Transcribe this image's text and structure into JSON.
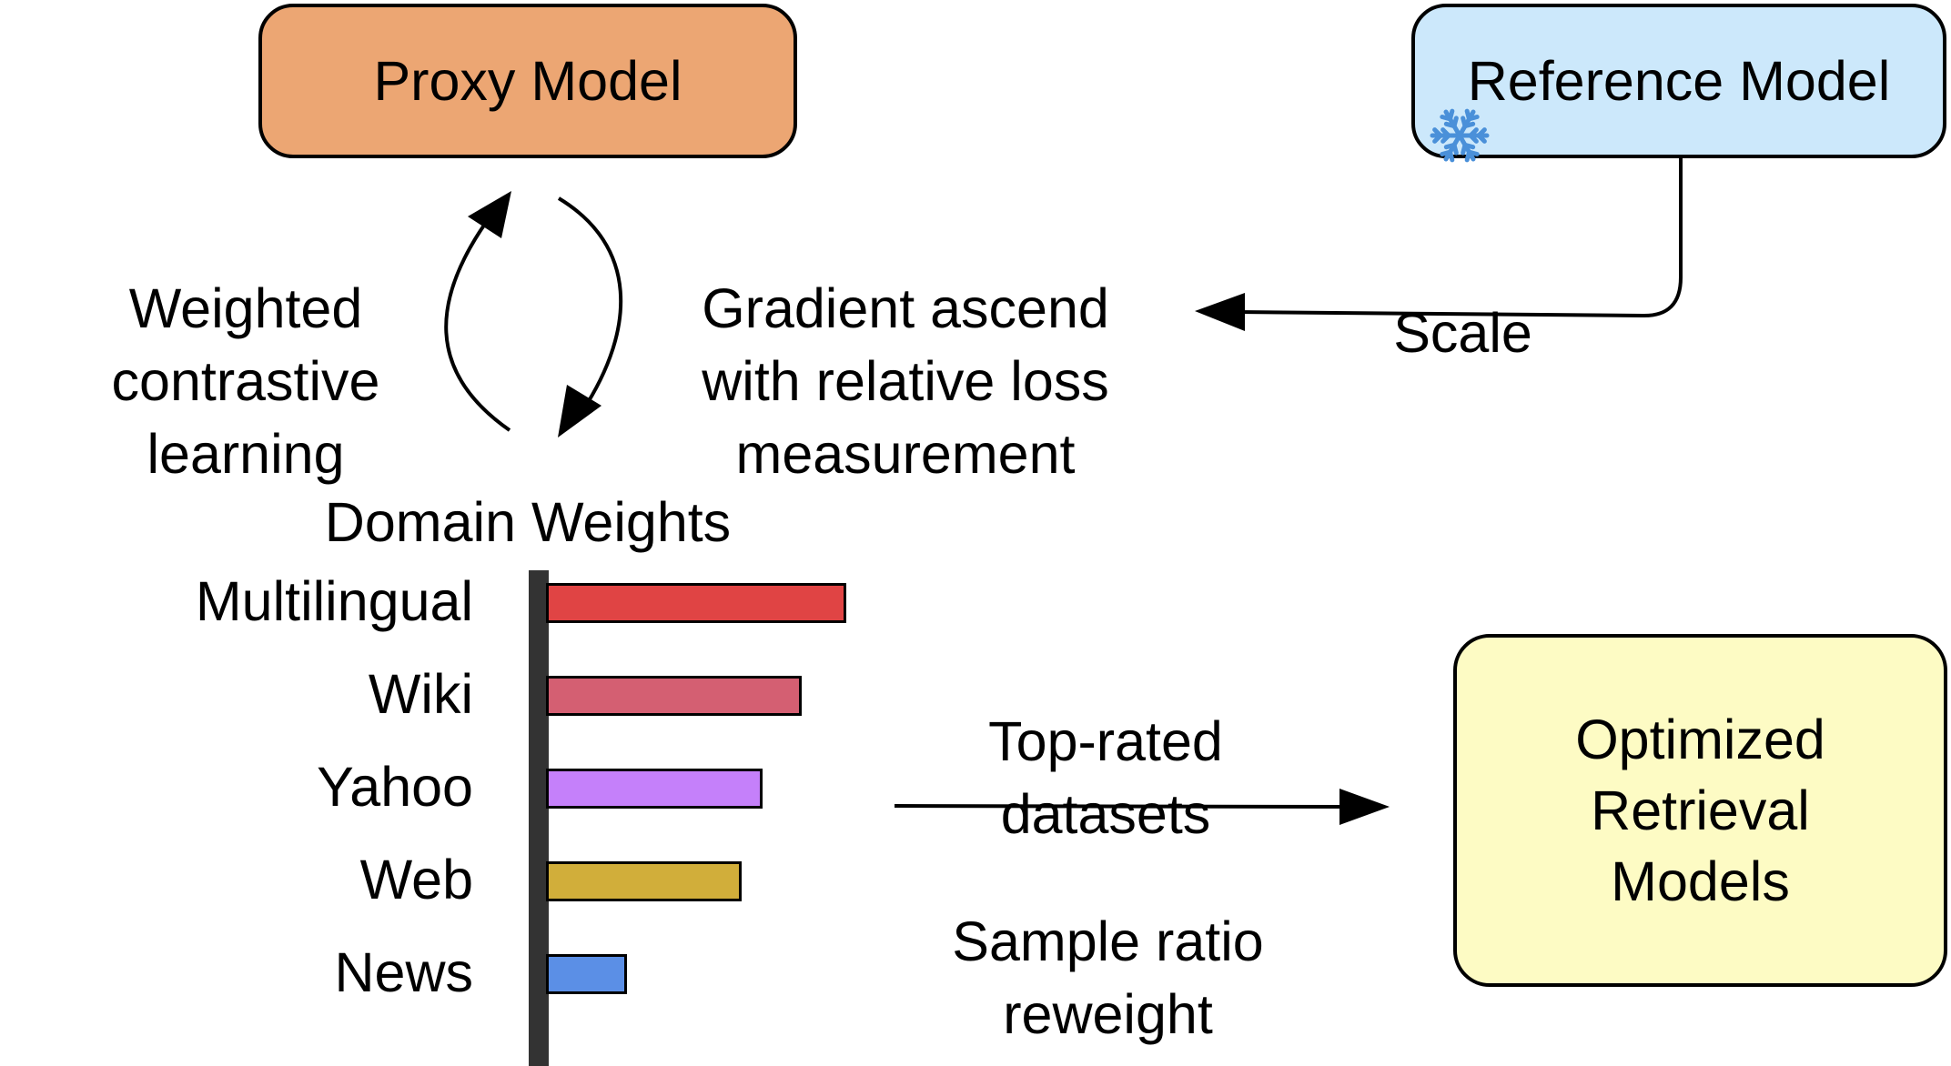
{
  "proxy_model": {
    "label": "Proxy Model",
    "fill": "#ECA673"
  },
  "reference_model": {
    "label": "Reference Model",
    "fill": "#CCE8FB",
    "icon": "snowflake-icon",
    "icon_color": "#4A90D9"
  },
  "optimized_models": {
    "label": "Optimized Retrieval Models",
    "fill": "#FDFBC4"
  },
  "labels": {
    "weighted_cl": "Weighted contrastive learning",
    "gradient_ascend": "Gradient ascend with relative loss measurement",
    "scale": "Scale",
    "top_rated": "Top-rated datasets",
    "sample_ratio": "Sample ratio reweight"
  },
  "domain_weights": {
    "title": "Domain Weights",
    "items": [
      {
        "name": "Multilingual",
        "weight": 1.0,
        "color": "#E04444"
      },
      {
        "name": "Wiki",
        "weight": 0.85,
        "color": "#D45F72"
      },
      {
        "name": "Yahoo",
        "weight": 0.72,
        "color": "#C580FA"
      },
      {
        "name": "Web",
        "weight": 0.65,
        "color": "#D1AE3A"
      },
      {
        "name": "News",
        "weight": 0.27,
        "color": "#5B8FE6"
      }
    ]
  }
}
